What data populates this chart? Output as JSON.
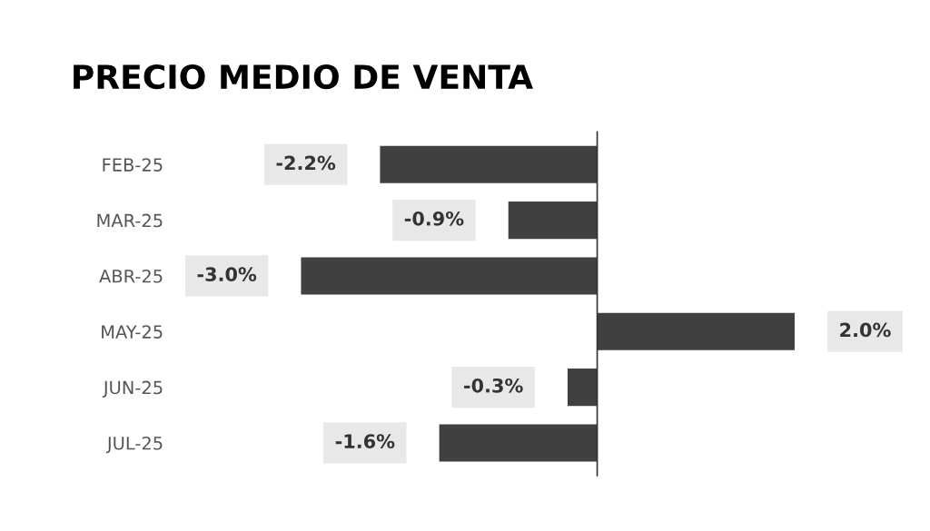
{
  "chart_data": {
    "type": "bar",
    "orientation": "horizontal",
    "title": "PRECIO MEDIO DE VENTA",
    "categories": [
      "FEB-25",
      "MAR-25",
      "ABR-25",
      "MAY-25",
      "JUN-25",
      "JUL-25"
    ],
    "values": [
      -2.2,
      -0.9,
      -3.0,
      2.0,
      -0.3,
      -1.6
    ],
    "value_labels": [
      "-2.2%",
      "-0.9%",
      "-3.0%",
      "2.0%",
      "-0.3%",
      "-1.6%"
    ],
    "color": "#404040",
    "grid": false,
    "legend": false
  }
}
